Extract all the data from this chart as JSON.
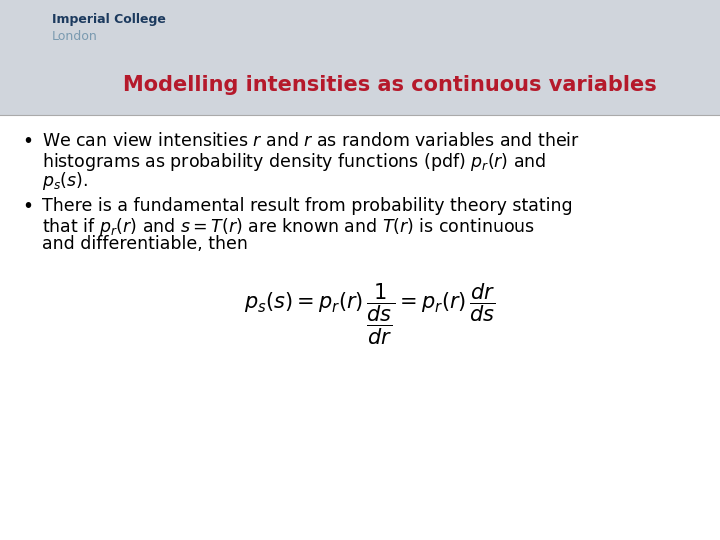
{
  "title": "Modelling intensities as continuous variables",
  "title_color": "#b5192b",
  "title_fontsize": 15,
  "background_color": "#d8dde3",
  "content_background": "#ffffff",
  "header_bg": "#d0d5dc",
  "logo_text_college": "Imperial College",
  "logo_text_london": "London",
  "logo_college_color": "#1c3a5e",
  "logo_london_color": "#7a9ab0",
  "text_fontsize": 12.5,
  "eq_fontsize": 15,
  "bullet1": [
    "We can view intensities $r$ and $r$ as random variables and their",
    "histograms as probability density functions (pdf) $p_r(r)$ and",
    "$p_s(s)$."
  ],
  "bullet2": [
    "There is a fundamental result from probability theory stating",
    "that if $p_r(r)$ and $s = T(r)$ are known and $T(r)$ is continuous",
    "and differentiable, then"
  ],
  "equation": "$p_s(s) = p_r(r)\\,\\dfrac{1}{\\dfrac{ds}{dr}} = p_r(r)\\,\\dfrac{dr}{ds}$",
  "fig_width": 7.2,
  "fig_height": 5.4,
  "dpi": 100
}
